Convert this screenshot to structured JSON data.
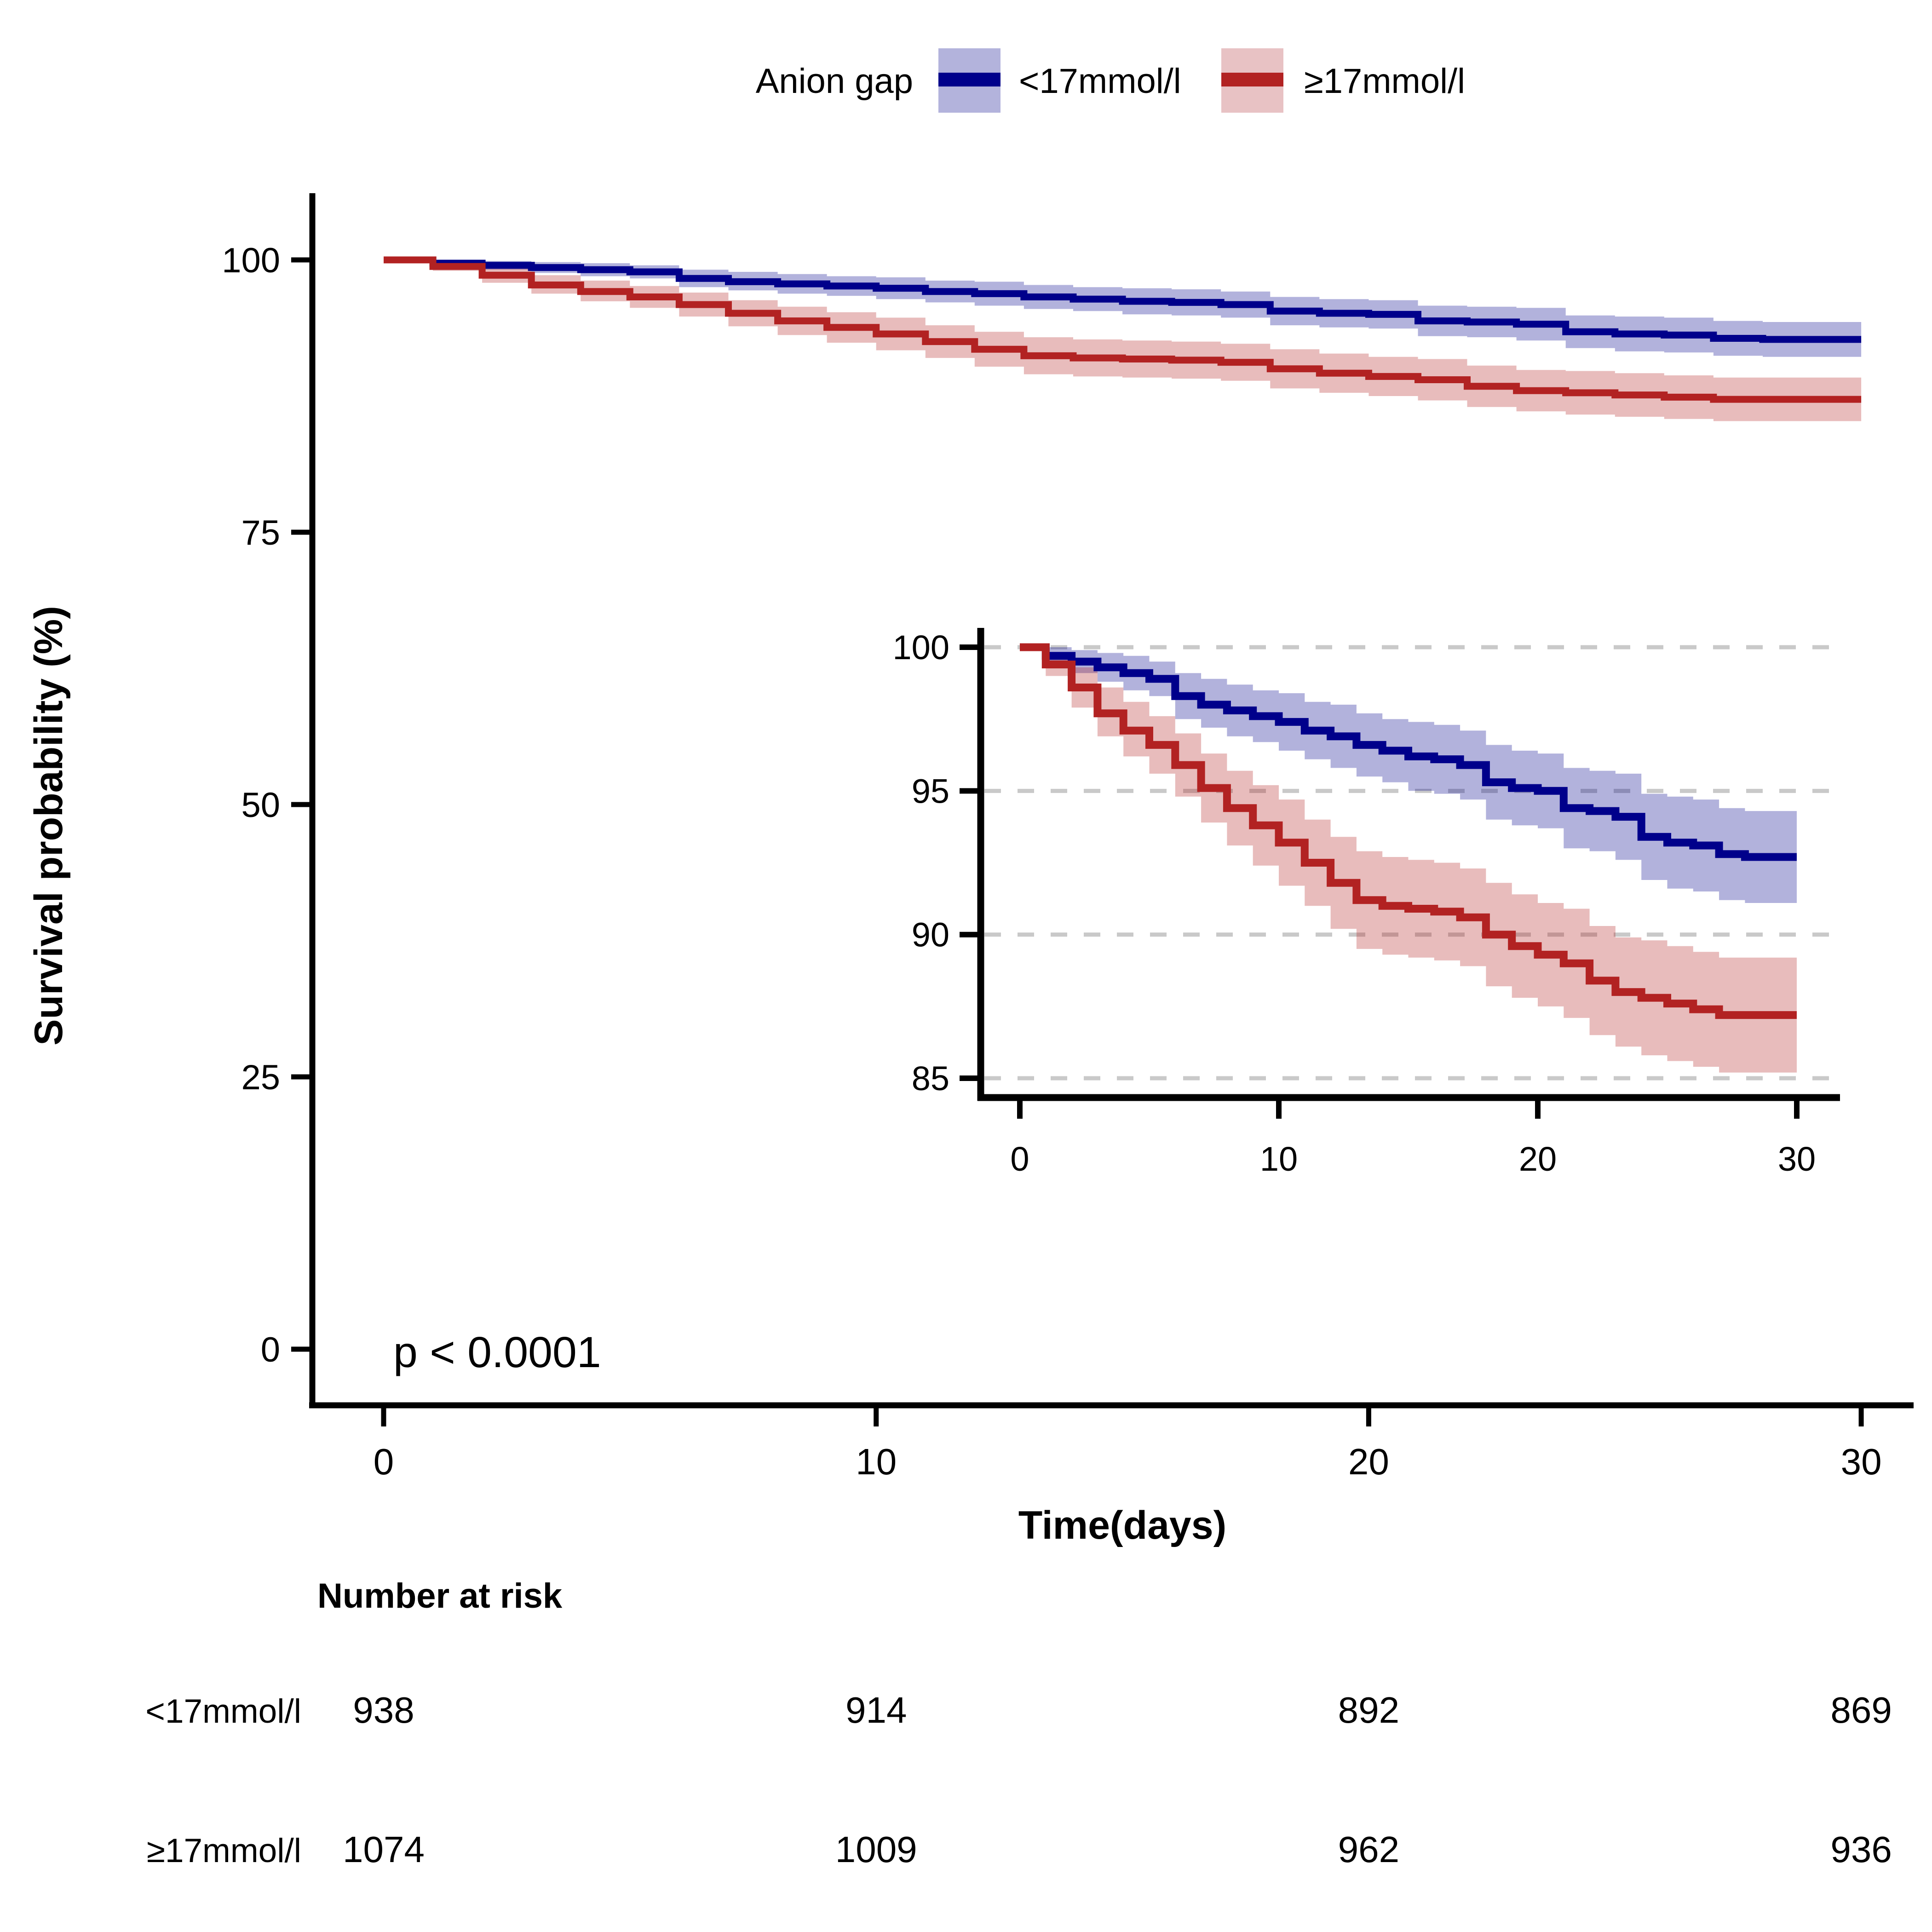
{
  "legend": {
    "title": "Anion gap",
    "items": [
      {
        "label": "<17mmol/l",
        "line_color": "#00008B",
        "ribbon_color": "#B3B3DC"
      },
      {
        "label": "≥17mmol/l",
        "line_color": "#B22222",
        "ribbon_color": "#E8C2C4"
      }
    ]
  },
  "axes": {
    "y_title": "Survival probability (%)",
    "x_title": "Time(days)",
    "y_ticks": [
      "100",
      "75",
      "50",
      "25",
      "0"
    ],
    "x_ticks": [
      "0",
      "10",
      "20",
      "30"
    ]
  },
  "annotation": {
    "p_value": "p < 0.0001"
  },
  "inset_axes": {
    "y_ticks": [
      "100",
      "95",
      "90",
      "85"
    ],
    "x_ticks": [
      "0",
      "10",
      "20",
      "30"
    ]
  },
  "risk_table": {
    "title": "Number at risk",
    "rows": [
      {
        "label": "<17mmol/l",
        "values": [
          "938",
          "914",
          "892",
          "869"
        ]
      },
      {
        "label": "≥17mmol/l",
        "values": [
          "1074",
          "1009",
          "962",
          "936"
        ]
      }
    ]
  },
  "chart_data": {
    "type": "line",
    "subtype": "kaplan-meier-step",
    "title": "",
    "xlabel": "Time(days)",
    "ylabel": "Survival probability (%)",
    "x_range_days": [
      0,
      30
    ],
    "main_ylim": [
      0,
      100
    ],
    "inset_ylim": [
      85,
      100
    ],
    "grid": "inset-only-dashed-horizontal",
    "legend_position": "top-center",
    "x": [
      0,
      1,
      2,
      3,
      4,
      5,
      6,
      7,
      8,
      9,
      10,
      11,
      12,
      13,
      14,
      15,
      16,
      17,
      18,
      19,
      20,
      21,
      22,
      23,
      24,
      25,
      26,
      27,
      28,
      29,
      30
    ],
    "series": [
      {
        "name": "<17mmol/l",
        "line_color": "#00008B",
        "ribbon_opacity": 0.3,
        "survival": [
          100,
          99.7,
          99.5,
          99.3,
          99.1,
          98.9,
          98.3,
          98.0,
          97.8,
          97.6,
          97.4,
          97.1,
          96.9,
          96.6,
          96.4,
          96.2,
          96.1,
          95.9,
          95.3,
          95.1,
          95.0,
          94.4,
          94.3,
          94.1,
          93.4,
          93.2,
          93.1,
          92.8,
          92.7,
          92.7,
          92.7
        ],
        "lower": [
          100,
          99.4,
          99.1,
          98.8,
          98.5,
          98.3,
          97.5,
          97.2,
          96.9,
          96.7,
          96.4,
          96.1,
          95.8,
          95.5,
          95.3,
          95.0,
          94.9,
          94.7,
          94.0,
          93.8,
          93.7,
          93.0,
          92.9,
          92.6,
          91.9,
          91.6,
          91.5,
          91.2,
          91.1,
          91.1,
          91.1
        ],
        "upper": [
          100,
          100,
          99.9,
          99.8,
          99.7,
          99.5,
          99.1,
          98.9,
          98.7,
          98.5,
          98.4,
          98.1,
          98.0,
          97.7,
          97.5,
          97.4,
          97.3,
          97.1,
          96.6,
          96.4,
          96.3,
          95.8,
          95.7,
          95.6,
          94.9,
          94.8,
          94.7,
          94.4,
          94.3,
          94.3,
          94.3
        ],
        "number_at_risk": {
          "0": 938,
          "10": 914,
          "20": 892,
          "30": 869
        }
      },
      {
        "name": "≥17mmol/l",
        "line_color": "#B22222",
        "ribbon_opacity": 0.3,
        "survival": [
          100,
          99.4,
          98.6,
          97.7,
          97.1,
          96.6,
          95.9,
          95.1,
          94.4,
          93.8,
          93.2,
          92.5,
          91.8,
          91.2,
          91.0,
          90.9,
          90.8,
          90.6,
          90.0,
          89.6,
          89.3,
          89.0,
          88.4,
          88.0,
          87.8,
          87.6,
          87.4,
          87.2,
          87.2,
          87.2,
          87.2
        ],
        "lower": [
          100,
          99.0,
          97.9,
          96.9,
          96.2,
          95.6,
          94.8,
          93.9,
          93.1,
          92.4,
          91.7,
          91.0,
          90.2,
          89.5,
          89.3,
          89.2,
          89.1,
          88.9,
          88.2,
          87.8,
          87.5,
          87.1,
          86.5,
          86.1,
          85.8,
          85.6,
          85.4,
          85.2,
          85.2,
          85.2,
          85.2
        ],
        "upper": [
          100,
          99.8,
          99.3,
          98.6,
          98.1,
          97.6,
          97.0,
          96.3,
          95.7,
          95.2,
          94.7,
          94.0,
          93.4,
          92.9,
          92.7,
          92.6,
          92.5,
          92.3,
          91.8,
          91.4,
          91.1,
          90.9,
          90.3,
          89.9,
          89.8,
          89.6,
          89.4,
          89.2,
          89.2,
          89.2,
          89.2
        ],
        "number_at_risk": {
          "0": 1074,
          "10": 1009,
          "20": 962,
          "30": 936
        }
      }
    ],
    "p_value_text": "p < 0.0001",
    "gridline_color": "#C9C9C9",
    "axis_color": "#000000"
  }
}
